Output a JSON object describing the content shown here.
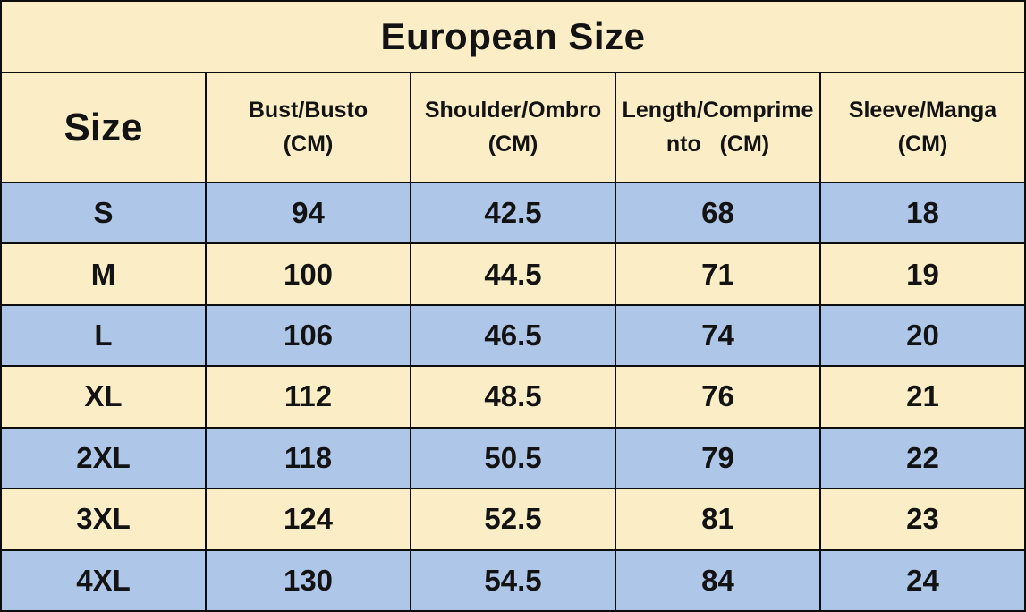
{
  "colors": {
    "cream": "#fbeec6",
    "blue": "#aec6e7",
    "line": "#0d0d0d",
    "ink": "#131313"
  },
  "chart_data": {
    "type": "table",
    "title": "European Size",
    "columns": [
      "Size",
      "Bust/Busto (CM)",
      "Shoulder/Ombro (CM)",
      "Length/Comprimento (CM)",
      "Sleeve/Manga (CM)"
    ],
    "header_lines": [
      [
        "Size"
      ],
      [
        "Bust/Busto",
        "(CM)"
      ],
      [
        "Shoulder/Ombro",
        "(CM)"
      ],
      [
        "Length/Comprime",
        "nto   (CM)"
      ],
      [
        "Sleeve/Manga",
        "(CM)"
      ]
    ],
    "rows": [
      [
        "S",
        "94",
        "42.5",
        "68",
        "18"
      ],
      [
        "M",
        "100",
        "44.5",
        "71",
        "19"
      ],
      [
        "L",
        "106",
        "46.5",
        "74",
        "20"
      ],
      [
        "XL",
        "112",
        "48.5",
        "76",
        "21"
      ],
      [
        "2XL",
        "118",
        "50.5",
        "79",
        "22"
      ],
      [
        "3XL",
        "124",
        "52.5",
        "81",
        "23"
      ],
      [
        "4XL",
        "130",
        "54.5",
        "84",
        "24"
      ]
    ],
    "row_stripe_colors": [
      "#aec6e7",
      "#fbeec6"
    ]
  }
}
